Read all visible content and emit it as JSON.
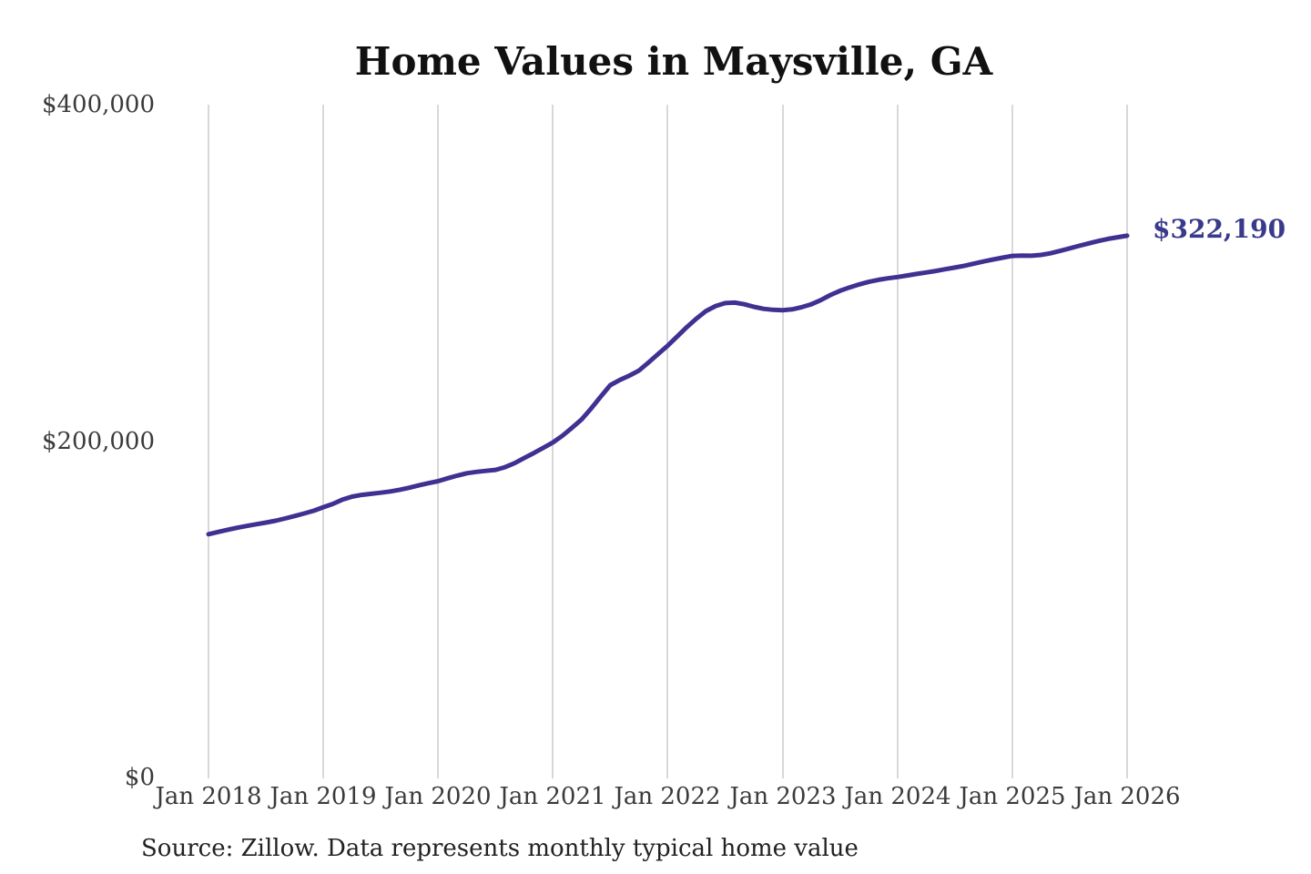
{
  "page": {
    "background": "#ffffff"
  },
  "chart": {
    "title": "Home Values in Maysville, GA",
    "end_label": "$322,190",
    "source_note": "Source: Zillow. Data represents monthly typical home value",
    "colors": {
      "line": "#3e3192",
      "end_label_text": "#3a3a8c",
      "gridline": "#cccccc",
      "axis_text": "#3a3a3a",
      "title_text": "#111111",
      "source_text": "#222222"
    }
  },
  "chart_data": {
    "type": "line",
    "title": "Home Values in Maysville, GA",
    "xlabel": "",
    "ylabel": "",
    "x_unit": "month",
    "x_start": "2018-01",
    "x_end": "2026-01",
    "x_tick_labels": [
      "Jan 2018",
      "Jan 2019",
      "Jan 2020",
      "Jan 2021",
      "Jan 2022",
      "Jan 2023",
      "Jan 2024",
      "Jan 2025",
      "Jan 2026"
    ],
    "y_tick_labels": [
      "$400,000",
      "$200,000",
      "$0"
    ],
    "ylim": [
      0,
      400000
    ],
    "grid": "vertical-only",
    "legend": "none",
    "annotation": {
      "text": "$322,190",
      "value": 322190,
      "position": "end-of-line"
    },
    "series": [
      {
        "name": "Typical home value (USD)",
        "values": [
          145000,
          146300,
          147600,
          148800,
          149900,
          150900,
          151900,
          153000,
          154300,
          155800,
          157300,
          158900,
          161000,
          163000,
          165500,
          167300,
          168300,
          169000,
          169600,
          170400,
          171400,
          172600,
          174000,
          175300,
          176500,
          178200,
          179800,
          181200,
          182000,
          182600,
          183200,
          184800,
          187200,
          190200,
          193200,
          196300,
          199500,
          203500,
          208200,
          213200,
          219700,
          226700,
          233500,
          236600,
          239200,
          242200,
          247000,
          252000,
          257000,
          262500,
          268000,
          273000,
          277500,
          280500,
          282200,
          282500,
          281500,
          280000,
          278800,
          278200,
          278000,
          278500,
          279800,
          281500,
          284000,
          287000,
          289500,
          291500,
          293300,
          294800,
          296000,
          296900,
          297700,
          298600,
          299500,
          300400,
          301300,
          302300,
          303300,
          304400,
          305600,
          306900,
          308100,
          309200,
          310200,
          310400,
          310300,
          310800,
          311800,
          313200,
          314700,
          316200,
          317700,
          319100,
          320300,
          321300,
          322190
        ]
      }
    ]
  }
}
